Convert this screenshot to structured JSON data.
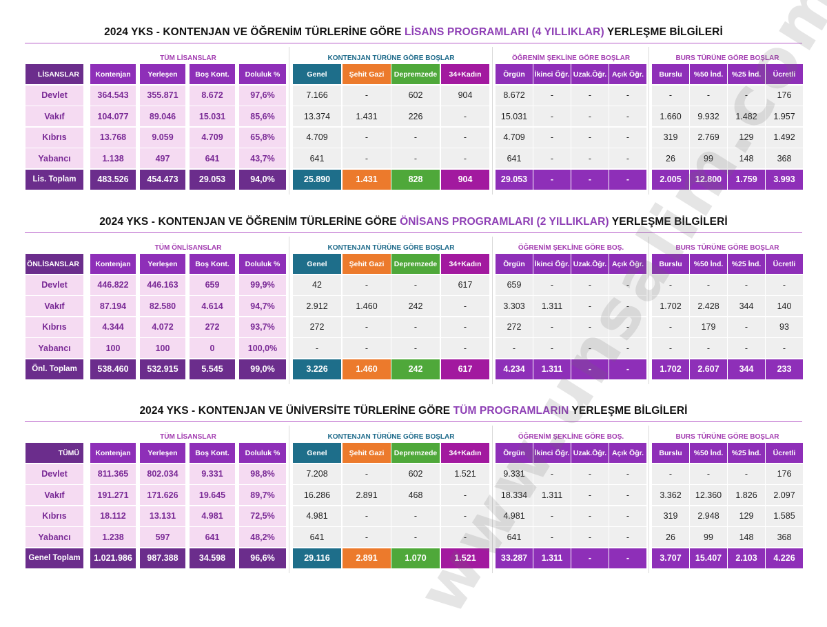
{
  "watermark": "www.unsalim.com",
  "colors": {
    "purple": "#6b2d8c",
    "teal": "#1e6e8a",
    "orange": "#ec7a2c",
    "green": "#4fa83a",
    "magenta": "#a2199f",
    "light": "#f5dbf2"
  },
  "sections": [
    {
      "title_pre": "2024 YKS - KONTENJAN VE ÖĞRENİM TÜRLERİNE GÖRE ",
      "title_hl": "LİSANS PROGRAMLARI (4 YILLIKLAR)",
      "title_post": " YERLEŞME BİLGİLERİ",
      "groups": [
        "TÜM LİSANSLAR",
        "KONTENJAN TÜRÜNE GÖRE BOŞLAR",
        "ÖĞRENİM ŞEKLİNE GÖRE BOŞLAR",
        "BURS TÜRÜNE GÖRE BOŞLAR"
      ],
      "corner": "LİSANSLAR",
      "headers": [
        "Kontenjan",
        "Yerleşen",
        "Boş Kont.",
        "Doluluk %",
        "Genel",
        "Şehit Gazi",
        "Depremzede",
        "34+Kadın",
        "Örgün",
        "İkinci Öğr.",
        "Uzak.Öğr.",
        "Açık Öğr.",
        "Burslu",
        "%50 İnd.",
        "%25 İnd.",
        "Ücretli"
      ],
      "rows": [
        {
          "label": "Devlet",
          "values": [
            "364.543",
            "355.871",
            "8.672",
            "97,6%",
            "7.166",
            "-",
            "602",
            "904",
            "8.672",
            "-",
            "-",
            "-",
            "-",
            "-",
            "-",
            "176"
          ]
        },
        {
          "label": "Vakıf",
          "values": [
            "104.077",
            "89.046",
            "15.031",
            "85,6%",
            "13.374",
            "1.431",
            "226",
            "-",
            "15.031",
            "-",
            "-",
            "-",
            "1.660",
            "9.932",
            "1.482",
            "1.957"
          ]
        },
        {
          "label": "Kıbrıs",
          "values": [
            "13.768",
            "9.059",
            "4.709",
            "65,8%",
            "4.709",
            "-",
            "-",
            "-",
            "4.709",
            "-",
            "-",
            "-",
            "319",
            "2.769",
            "129",
            "1.492"
          ]
        },
        {
          "label": "Yabancı",
          "values": [
            "1.138",
            "497",
            "641",
            "43,7%",
            "641",
            "-",
            "-",
            "-",
            "641",
            "-",
            "-",
            "-",
            "26",
            "99",
            "148",
            "368"
          ]
        }
      ],
      "total": {
        "label": "Lis. Toplam",
        "values": [
          "483.526",
          "454.473",
          "29.053",
          "94,0%",
          "25.890",
          "1.431",
          "828",
          "904",
          "29.053",
          "-",
          "-",
          "-",
          "2.005",
          "12.800",
          "1.759",
          "3.993"
        ]
      }
    },
    {
      "title_pre": "2024 YKS - KONTENJAN VE ÖĞRENİM TÜRLERİNE GÖRE ",
      "title_hl": "ÖNİSANS PROGRAMLARI (2 YILLIKLAR)",
      "title_post": " YERLEŞME BİLGİLERİ",
      "groups": [
        "TÜM ÖNLİSANSLAR",
        "KONTENJAN TÜRÜNE GÖRE BOŞLAR",
        "ÖĞRENİM ŞEKLİNE GÖRE BOŞ.",
        "BURS TÜRÜNE GÖRE BOŞLAR"
      ],
      "corner": "ÖNLİSANSLAR",
      "headers": [
        "Kontenjan",
        "Yerleşen",
        "Boş Kont.",
        "Doluluk %",
        "Genel",
        "Şehit Gazi",
        "Depremzede",
        "34+Kadın",
        "Örgün",
        "İkinci Öğr.",
        "Uzak.Öğr.",
        "Açık Öğr.",
        "Burslu",
        "%50 İnd.",
        "%25 İnd.",
        "Ücretli"
      ],
      "rows": [
        {
          "label": "Devlet",
          "values": [
            "446.822",
            "446.163",
            "659",
            "99,9%",
            "42",
            "-",
            "-",
            "617",
            "659",
            "-",
            "-",
            "-",
            "-",
            "-",
            "-",
            "-"
          ]
        },
        {
          "label": "Vakıf",
          "values": [
            "87.194",
            "82.580",
            "4.614",
            "94,7%",
            "2.912",
            "1.460",
            "242",
            "-",
            "3.303",
            "1.311",
            "-",
            "-",
            "1.702",
            "2.428",
            "344",
            "140"
          ]
        },
        {
          "label": "Kıbrıs",
          "values": [
            "4.344",
            "4.072",
            "272",
            "93,7%",
            "272",
            "-",
            "-",
            "-",
            "272",
            "-",
            "-",
            "-",
            "-",
            "179",
            "-",
            "93"
          ]
        },
        {
          "label": "Yabancı",
          "values": [
            "100",
            "100",
            "0",
            "100,0%",
            "-",
            "-",
            "-",
            "-",
            "-",
            "-",
            "-",
            "-",
            "-",
            "-",
            "-",
            "-"
          ]
        }
      ],
      "total": {
        "label": "Önl. Toplam",
        "values": [
          "538.460",
          "532.915",
          "5.545",
          "99,0%",
          "3.226",
          "1.460",
          "242",
          "617",
          "4.234",
          "1.311",
          "-",
          "-",
          "1.702",
          "2.607",
          "344",
          "233"
        ]
      }
    },
    {
      "title_pre": "2024 YKS - KONTENJAN VE ÜNİVERSİTE TÜRLERİNE GÖRE ",
      "title_hl": "TÜM PROGRAMLARIN",
      "title_post": " YERLEŞME BİLGİLERİ",
      "groups": [
        "TÜM LİSANSLAR",
        "KONTENJAN TÜRÜNE GÖRE BOŞLAR",
        "ÖĞRENİM ŞEKLİNE GÖRE BOŞ.",
        "BURS TÜRÜNE GÖRE BOŞLAR"
      ],
      "corner": "TÜMÜ",
      "headers": [
        "Kontenjan",
        "Yerleşen",
        "Boş Kont.",
        "Doluluk %",
        "Genel",
        "Şehit Gazi",
        "Depremzede",
        "34+Kadın",
        "Örgün",
        "İkinci Öğr.",
        "Uzak.Öğr.",
        "Açık Öğr.",
        "Burslu",
        "%50 İnd.",
        "%25 İnd.",
        "Ücretli"
      ],
      "rows": [
        {
          "label": "Devlet",
          "values": [
            "811.365",
            "802.034",
            "9.331",
            "98,8%",
            "7.208",
            "-",
            "602",
            "1.521",
            "9.331",
            "-",
            "-",
            "-",
            "-",
            "-",
            "-",
            "176"
          ]
        },
        {
          "label": "Vakıf",
          "values": [
            "191.271",
            "171.626",
            "19.645",
            "89,7%",
            "16.286",
            "2.891",
            "468",
            "-",
            "18.334",
            "1.311",
            "-",
            "-",
            "3.362",
            "12.360",
            "1.826",
            "2.097"
          ]
        },
        {
          "label": "Kıbrıs",
          "values": [
            "18.112",
            "13.131",
            "4.981",
            "72,5%",
            "4.981",
            "-",
            "-",
            "-",
            "4.981",
            "-",
            "-",
            "-",
            "319",
            "2.948",
            "129",
            "1.585"
          ]
        },
        {
          "label": "Yabancı",
          "values": [
            "1.238",
            "597",
            "641",
            "48,2%",
            "641",
            "-",
            "-",
            "-",
            "641",
            "-",
            "-",
            "-",
            "26",
            "99",
            "148",
            "368"
          ]
        }
      ],
      "total": {
        "label": "Genel Toplam",
        "values": [
          "1.021.986",
          "987.388",
          "34.598",
          "96,6%",
          "29.116",
          "2.891",
          "1.070",
          "1.521",
          "33.287",
          "1.311",
          "-",
          "-",
          "3.707",
          "15.407",
          "2.103",
          "4.226"
        ]
      }
    }
  ]
}
